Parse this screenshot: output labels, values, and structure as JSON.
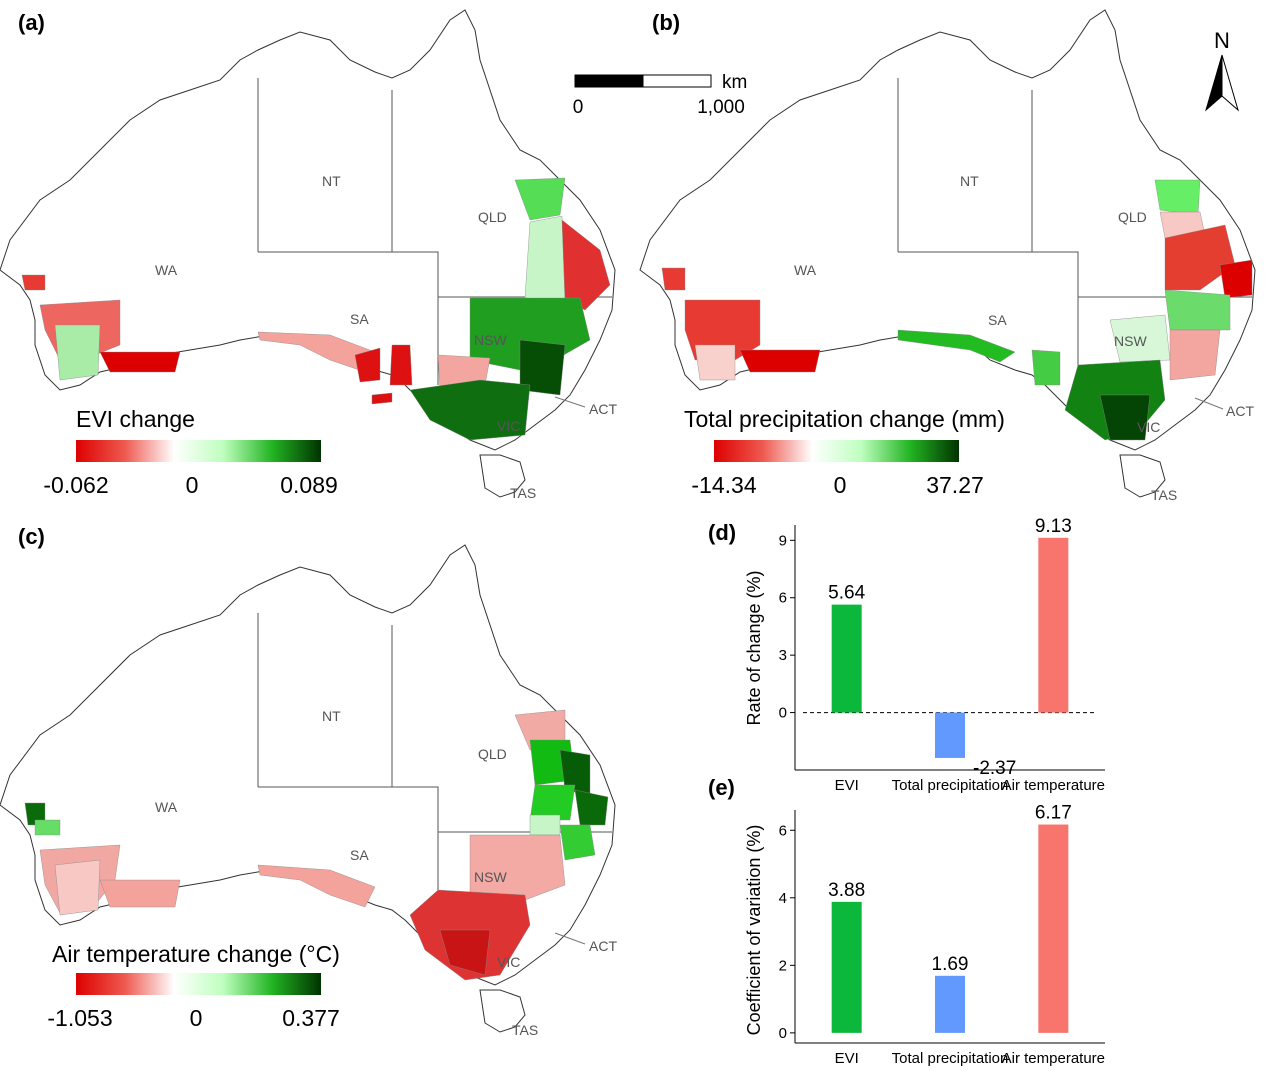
{
  "panels": {
    "a": {
      "label": "(a)",
      "legend_title": "EVI change",
      "legend_min": "-0.062",
      "legend_mid": "0",
      "legend_max": "0.089"
    },
    "b": {
      "label": "(b)",
      "legend_title": "Total precipitation change (mm)",
      "legend_min": "-14.34",
      "legend_mid": "0",
      "legend_max": "37.27"
    },
    "c": {
      "label": "(c)",
      "legend_title": "Air temperature change (°C)",
      "legend_min": "-1.053",
      "legend_mid": "0",
      "legend_max": "0.377"
    },
    "d": {
      "label": "(d)"
    },
    "e": {
      "label": "(e)"
    }
  },
  "states": {
    "nt": "NT",
    "qld": "QLD",
    "wa": "WA",
    "sa": "SA",
    "nsw": "NSW",
    "act": "ACT",
    "vic": "VIC",
    "tas": "TAS"
  },
  "scale_bar": {
    "unit": "km",
    "start": "0",
    "end": "1,000"
  },
  "north_arrow": {
    "label": "N",
    "icon": "north-arrow-icon"
  },
  "colors": {
    "red": "#dd0000",
    "white": "#ffffff",
    "green": "#003300",
    "evi": "#0bb83c",
    "precipitation": "#6199ff",
    "temperature": "#f8756d"
  },
  "chart_data": [
    {
      "type": "bar",
      "categories": [
        "EVI",
        "Total precipitation",
        "Air temperature"
      ],
      "values": [
        5.64,
        -2.37,
        9.13
      ],
      "labels": [
        "5.64",
        "-2.37",
        "9.13"
      ],
      "ylabel": "Rate of change (%)",
      "yticks": [
        0,
        3,
        6,
        9
      ],
      "ylim": [
        -3,
        9.8
      ],
      "reference_line": 0
    },
    {
      "type": "bar",
      "categories": [
        "EVI",
        "Total precipitation",
        "Air temperature"
      ],
      "values": [
        3.88,
        1.69,
        6.17
      ],
      "labels": [
        "3.88",
        "1.69",
        "6.17"
      ],
      "ylabel": "Coefficient of variation (%)",
      "yticks": [
        0,
        2,
        4,
        6
      ],
      "ylim": [
        -0.3,
        6.6
      ]
    }
  ]
}
